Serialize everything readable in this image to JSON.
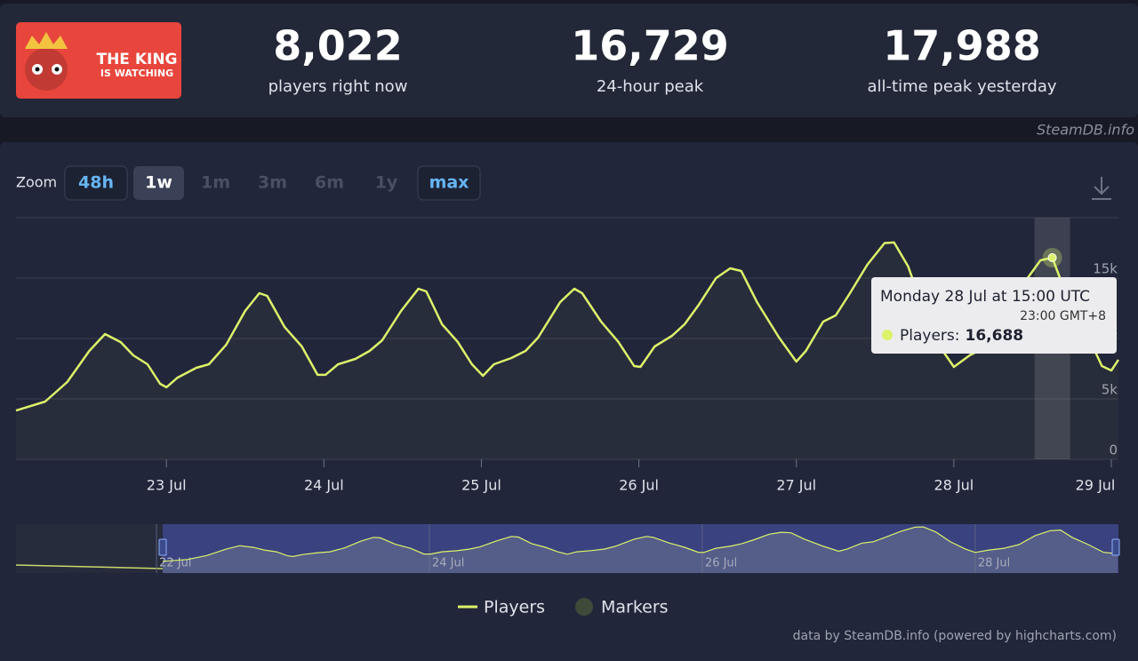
{
  "logo": [
    "THE KING",
    "IS WATCHING"
  ],
  "stats": [
    {
      "value": 8022,
      "value_label": "8,022",
      "label": "players right now"
    },
    {
      "value": 16729,
      "value_label": "16,729",
      "label": "24-hour peak"
    },
    {
      "value": 17988,
      "value_label": "17,988",
      "label": "all-time peak yesterday"
    }
  ],
  "watermark": "SteamDB.info",
  "zoom": {
    "label": "Zoom",
    "options": [
      {
        "label": "48h",
        "state": "enabled"
      },
      {
        "label": "1w",
        "state": "selected"
      },
      {
        "label": "1m",
        "state": "disabled"
      },
      {
        "label": "3m",
        "state": "disabled"
      },
      {
        "label": "6m",
        "state": "disabled"
      },
      {
        "label": "1y",
        "state": "disabled"
      },
      {
        "label": "max",
        "state": "enabled"
      }
    ]
  },
  "chart_data": {
    "type": "line",
    "x": [
      22.045,
      22.23,
      22.37,
      22.51,
      22.61,
      22.71,
      22.79,
      22.88,
      22.96,
      23.0,
      23.07,
      23.19,
      23.27,
      23.38,
      23.5,
      23.59,
      23.64,
      23.75,
      23.86,
      23.96,
      24.01,
      24.09,
      24.2,
      24.29,
      24.37,
      24.49,
      24.6,
      24.65,
      24.75,
      24.85,
      24.94,
      25.01,
      25.08,
      25.19,
      25.28,
      25.36,
      25.5,
      25.59,
      25.64,
      25.76,
      25.87,
      25.97,
      26.01,
      26.1,
      26.21,
      26.29,
      26.38,
      26.49,
      26.58,
      26.65,
      26.75,
      26.89,
      27.0,
      27.06,
      27.17,
      27.25,
      27.34,
      27.45,
      27.56,
      27.62,
      27.71,
      27.82,
      27.93,
      28.0,
      28.1,
      28.21,
      28.32,
      28.44,
      28.55,
      28.625,
      28.71,
      28.83,
      28.94,
      29.0,
      29.045
    ],
    "series": [
      {
        "name": "Players",
        "color": "#dcf26a",
        "values": [
          4040,
          4780,
          6400,
          8970,
          10370,
          9700,
          8600,
          7870,
          6250,
          5960,
          6760,
          7570,
          7870,
          9490,
          12280,
          13750,
          13530,
          10960,
          9340,
          6990,
          6990,
          7870,
          8310,
          8970,
          9850,
          12280,
          14120,
          13900,
          11180,
          9710,
          7870,
          6910,
          7870,
          8380,
          8970,
          10070,
          13010,
          14120,
          13750,
          11400,
          9710,
          7720,
          7650,
          9340,
          10220,
          11180,
          12790,
          15000,
          15810,
          15590,
          13010,
          10070,
          8090,
          8970,
          11400,
          11910,
          13750,
          16100,
          17900,
          17950,
          15960,
          11910,
          8970,
          7650,
          8600,
          9340,
          10810,
          14490,
          16470,
          16688,
          13750,
          10810,
          7720,
          7350,
          8240
        ]
      }
    ],
    "markers": {
      "name": "Markers",
      "color": "#3e4a3a"
    },
    "xlim": [
      22.045,
      29.045
    ],
    "xticks": [
      {
        "value": 23,
        "label": "23 Jul"
      },
      {
        "value": 24,
        "label": "24 Jul"
      },
      {
        "value": 25,
        "label": "25 Jul"
      },
      {
        "value": 26,
        "label": "26 Jul"
      },
      {
        "value": 27,
        "label": "27 Jul"
      },
      {
        "value": 28,
        "label": "28 Jul"
      },
      {
        "value": 29,
        "label": "29 Jul"
      }
    ],
    "ylim": [
      0,
      20000
    ],
    "yticks": [
      0,
      {
        "value": 5000,
        "label": "5k"
      },
      {
        "value": 10000,
        "label": "10k"
      },
      {
        "value": 15000,
        "label": "15k"
      }
    ],
    "grid": true,
    "tooltip": {
      "index": 69,
      "title": "Monday 28 Jul at 15:00 UTC",
      "subtitle": "23:00 GMT+8",
      "series_label": "Players:",
      "value_label": "16,688"
    },
    "navigator": {
      "xlim": [
        20.97,
        29.05
      ],
      "xticks": [
        {
          "value": 22,
          "label": "22 Jul"
        },
        {
          "value": 24,
          "label": "24 Jul"
        },
        {
          "value": 26,
          "label": "26 Jul"
        },
        {
          "value": 28,
          "label": "28 Jul"
        }
      ]
    },
    "credits": "data by SteamDB.info (powered by highcharts.com)"
  }
}
